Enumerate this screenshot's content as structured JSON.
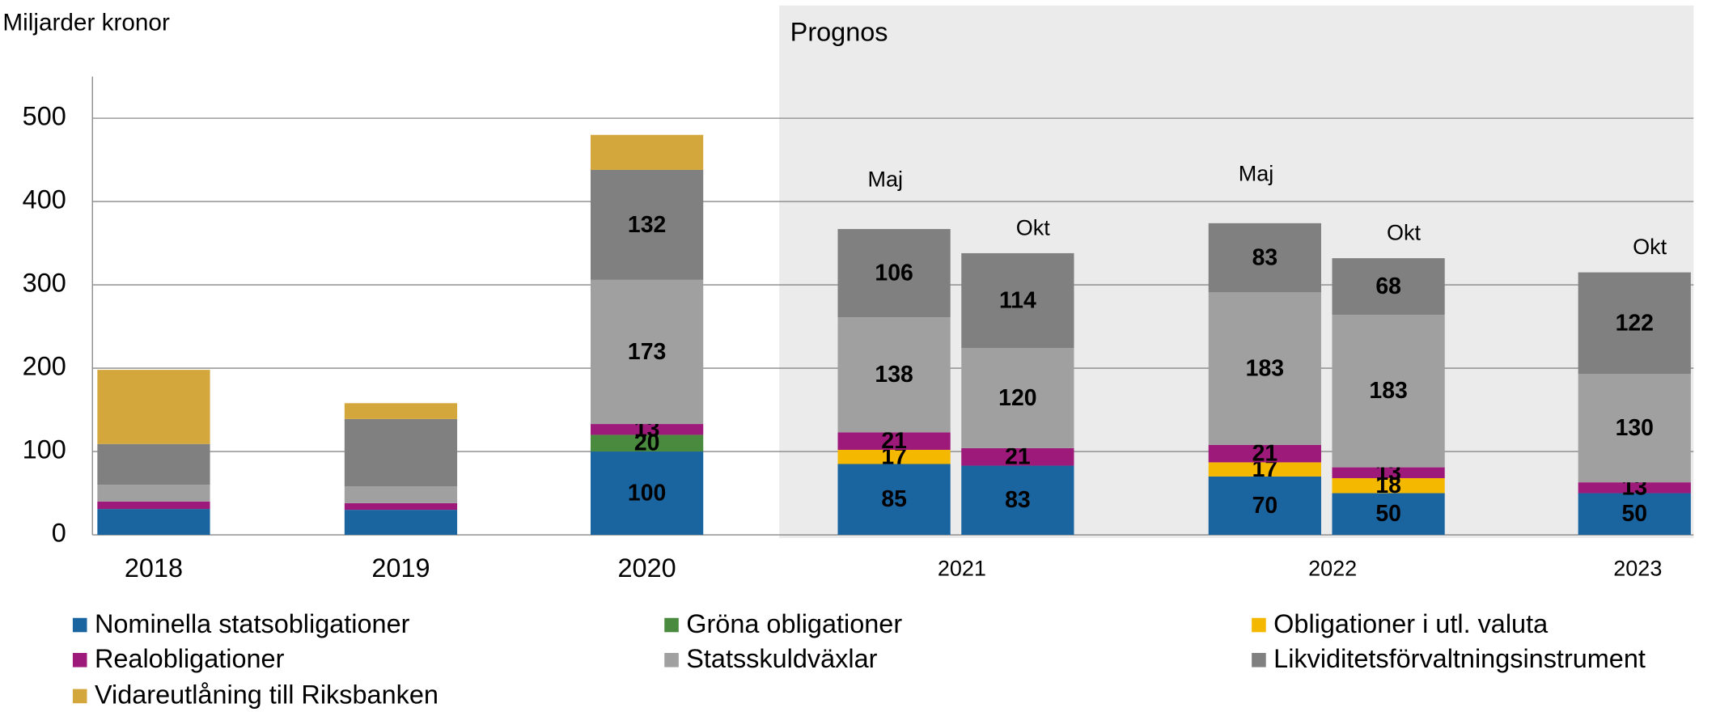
{
  "chart_data": {
    "type": "stacked_bar",
    "y_label": "Miljarder kronor",
    "annotation": "Prognos",
    "x_labels": [
      "2018",
      "2019",
      "2020",
      "2021",
      "2022",
      "2023"
    ],
    "categories": [
      null,
      null,
      null,
      "Maj",
      "Okt",
      "Maj",
      "Okt",
      "Okt"
    ],
    "ylim": [
      0,
      550
    ],
    "yticks": [
      0,
      100,
      200,
      300,
      400,
      500
    ],
    "grid": true,
    "series": [
      {
        "name": "Nominella statsobligationer",
        "color": "#1a64a0",
        "values": [
          31,
          30,
          100,
          85,
          83,
          70,
          50,
          50
        ],
        "value_labels": [
          null,
          null,
          "100",
          "85",
          "83",
          "70",
          "50",
          "50"
        ]
      },
      {
        "name": "Gröna obligationer",
        "color": "#4a8a3e",
        "values": [
          null,
          null,
          20,
          null,
          null,
          null,
          null,
          null
        ],
        "value_labels": [
          null,
          null,
          "20",
          null,
          null,
          null,
          null,
          null
        ]
      },
      {
        "name": "Obligationer i utl. valuta",
        "color": "#f5b800",
        "values": [
          null,
          null,
          null,
          17,
          null,
          17,
          18,
          null
        ],
        "value_labels": [
          null,
          null,
          null,
          "17",
          null,
          "17",
          "18",
          null
        ]
      },
      {
        "name": "Realobligationer",
        "color": "#9e1a7a",
        "values": [
          9,
          8,
          13,
          21,
          21,
          21,
          13,
          13
        ],
        "value_labels": [
          null,
          null,
          "13",
          "21",
          "21",
          "21",
          "13",
          "13"
        ]
      },
      {
        "name": "Statsskuldväxlar",
        "color": "#a0a0a0",
        "values": [
          20,
          20,
          173,
          138,
          120,
          183,
          183,
          130
        ],
        "value_labels": [
          null,
          null,
          "173",
          "138",
          "120",
          "183",
          "183",
          "130"
        ]
      },
      {
        "name": "Likviditetsförvaltningsinstrument",
        "color": "#808080",
        "values": [
          49,
          81,
          132,
          106,
          114,
          83,
          68,
          122
        ],
        "value_labels": [
          null,
          null,
          "132",
          "106",
          "114",
          "83",
          "68",
          "122"
        ]
      },
      {
        "name": "Vidareutlåning till Riksbanken",
        "color": "#d4a73c",
        "values": [
          89,
          19,
          42,
          null,
          null,
          null,
          null,
          null
        ],
        "value_labels": [
          null,
          null,
          null,
          null,
          null,
          null,
          null,
          null
        ]
      }
    ]
  }
}
